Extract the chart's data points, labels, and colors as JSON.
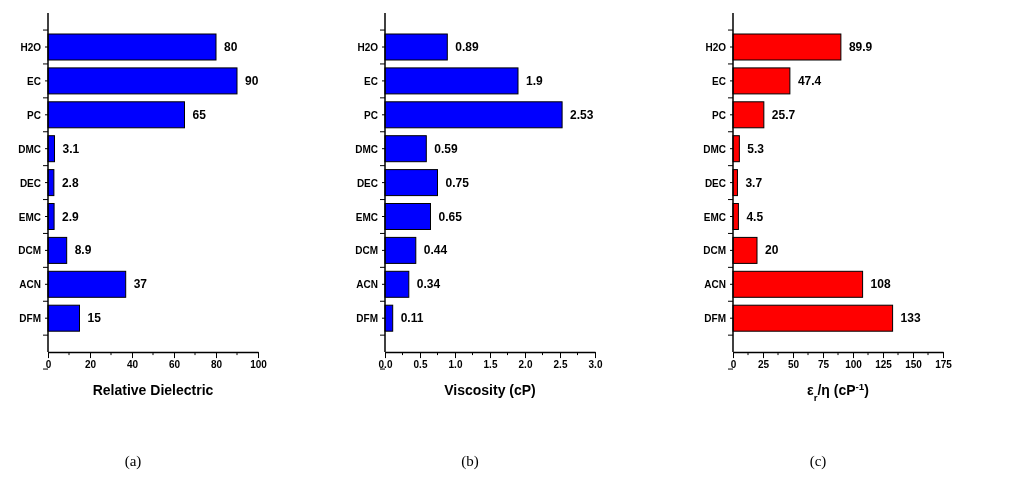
{
  "chart_data": [
    {
      "type": "bar",
      "orientation": "horizontal",
      "categories": [
        "H2O",
        "EC",
        "PC",
        "DMC",
        "DEC",
        "EMC",
        "DCM",
        "ACN",
        "DFM"
      ],
      "values": [
        80,
        90,
        65,
        3.1,
        2.8,
        2.9,
        8.9,
        37,
        15
      ],
      "color": "#0000ff",
      "xlabel": "Relative Dielectric",
      "xlim": [
        0,
        100
      ],
      "xticks": [
        0,
        20,
        40,
        60,
        80,
        100
      ],
      "data_labels": true,
      "annotations": [
        "(a)"
      ]
    },
    {
      "type": "bar",
      "orientation": "horizontal",
      "categories": [
        "H2O",
        "EC",
        "PC",
        "DMC",
        "DEC",
        "EMC",
        "DCM",
        "ACN",
        "DFM"
      ],
      "values": [
        0.89,
        1.9,
        2.53,
        0.59,
        0.75,
        0.65,
        0.44,
        0.34,
        0.11
      ],
      "color": "#0000ff",
      "xlabel": "Viscosity (cP)",
      "xlim": [
        0,
        3
      ],
      "xticks": [
        {
          "value": 0,
          "label": "0.0"
        },
        {
          "value": 0.5,
          "label": "0.5"
        },
        {
          "value": 1,
          "label": "1.0"
        },
        {
          "value": 1.5,
          "label": "1.5"
        },
        {
          "value": 2,
          "label": "2.0"
        },
        {
          "value": 2.5,
          "label": "2.5"
        },
        {
          "value": 3,
          "label": "3.0"
        }
      ],
      "data_labels": true,
      "annotations": [
        "(b)"
      ]
    },
    {
      "type": "bar",
      "orientation": "horizontal",
      "categories": [
        "H2O",
        "EC",
        "PC",
        "DMC",
        "DEC",
        "EMC",
        "DCM",
        "ACN",
        "DFM"
      ],
      "values": [
        89.9,
        47.4,
        25.7,
        5.3,
        3.7,
        4.5,
        20,
        108,
        133
      ],
      "color": "#ff0000",
      "xlabel": "ε$_{r}$/η (cP$^{-1}$)",
      "xlim": [
        0,
        175
      ],
      "xticks": [
        0,
        25,
        50,
        75,
        100,
        125,
        150,
        175
      ],
      "data_labels": true,
      "annotations": [
        "(c)"
      ]
    }
  ]
}
